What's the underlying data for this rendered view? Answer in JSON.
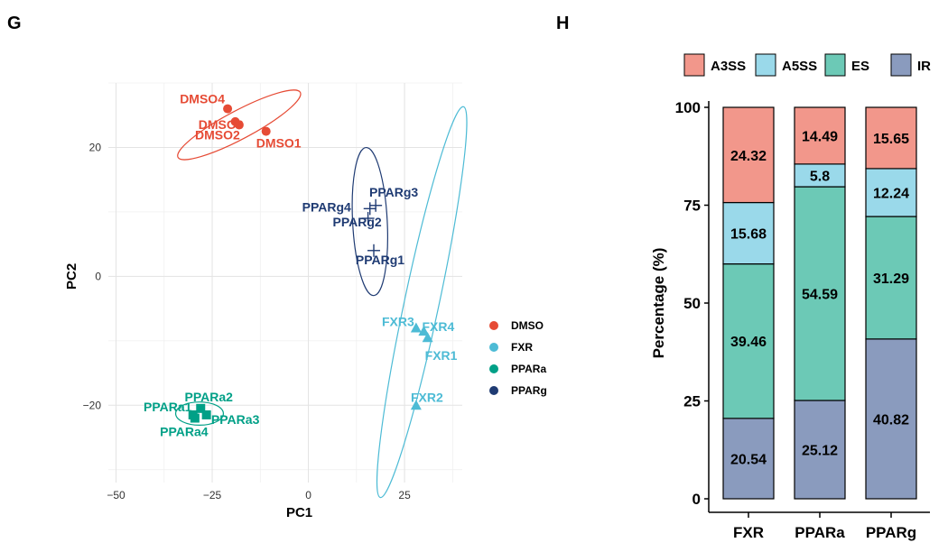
{
  "chart_data": [
    {
      "type": "scatter",
      "panel": "G",
      "xlabel": "PC1",
      "ylabel": "PC2",
      "xlim": [
        -52,
        40
      ],
      "ylim": [
        -32,
        30
      ],
      "xticks": [
        -50,
        -25,
        0,
        25
      ],
      "yticks": [
        -20,
        0,
        20
      ],
      "xtick_labels": [
        "−50",
        "−25",
        "0",
        "25"
      ],
      "ytick_labels": [
        "−20",
        "0",
        "20"
      ],
      "grid": true,
      "legend": "right",
      "series": [
        {
          "name": "DMSO",
          "color": "#E64B35",
          "marker": "circle",
          "points": [
            {
              "label": "DMSO1",
              "x": -11,
              "y": 22.5
            },
            {
              "label": "DMSO2",
              "x": -18,
              "y": 23.5
            },
            {
              "label": "DMSO3",
              "x": -19,
              "y": 24
            },
            {
              "label": "DMSO4",
              "x": -21,
              "y": 26
            }
          ],
          "ellipse": {
            "cx": -18,
            "cy": 23.5,
            "rx": 18,
            "ry": 2.2,
            "angle": -28
          }
        },
        {
          "name": "FXR",
          "color": "#4DBBD5",
          "marker": "triangle",
          "points": [
            {
              "label": "FXR1",
              "x": 31,
              "y": -9.5
            },
            {
              "label": "FXR2",
              "x": 28,
              "y": -20
            },
            {
              "label": "FXR3",
              "x": 28,
              "y": -8
            },
            {
              "label": "FXR4",
              "x": 30,
              "y": -8.5
            }
          ],
          "ellipse": {
            "cx": 29.5,
            "cy": -4,
            "rx": 4.5,
            "ry": 31,
            "angle": 12
          }
        },
        {
          "name": "PPARa",
          "color": "#00A087",
          "marker": "square",
          "points": [
            {
              "label": "PPARa1",
              "x": -30,
              "y": -21.5
            },
            {
              "label": "PPARa2",
              "x": -28,
              "y": -20.5
            },
            {
              "label": "PPARa3",
              "x": -26.5,
              "y": -21.5
            },
            {
              "label": "PPARa4",
              "x": -29.5,
              "y": -22
            }
          ],
          "ellipse": {
            "cx": -28.3,
            "cy": -21.3,
            "rx": 6.2,
            "ry": 1.8,
            "angle": 0
          }
        },
        {
          "name": "PPARg",
          "color": "#1F3B73",
          "marker": "cross",
          "points": [
            {
              "label": "PPARg1",
              "x": 17,
              "y": 4
            },
            {
              "label": "PPARg2",
              "x": 15.5,
              "y": 9
            },
            {
              "label": "PPARg3",
              "x": 17.5,
              "y": 11
            },
            {
              "label": "PPARg4",
              "x": 16,
              "y": 10.5
            }
          ],
          "ellipse": {
            "cx": 16,
            "cy": 8.5,
            "rx": 4.5,
            "ry": 11.5,
            "angle": -3
          }
        }
      ]
    },
    {
      "type": "bar",
      "panel": "H",
      "stacked": true,
      "categories": [
        "FXR",
        "PPARa",
        "PPARg"
      ],
      "ylabel": "Percentage (%)",
      "ylim": [
        0,
        100
      ],
      "yticks": [
        0,
        25,
        50,
        75,
        100
      ],
      "legend": "top",
      "series": [
        {
          "name": "IR",
          "color": "#8A9BBE",
          "values": [
            20.54,
            25.12,
            40.82
          ]
        },
        {
          "name": "ES",
          "color": "#6CC9B6",
          "values": [
            39.46,
            54.59,
            31.29
          ]
        },
        {
          "name": "A5SS",
          "color": "#9AD9EA",
          "values": [
            15.68,
            5.8,
            12.24
          ]
        },
        {
          "name": "A3SS",
          "color": "#F2978B",
          "values": [
            24.32,
            14.49,
            15.65
          ]
        }
      ],
      "legend_order": [
        "A3SS",
        "A5SS",
        "ES",
        "IR"
      ]
    }
  ]
}
